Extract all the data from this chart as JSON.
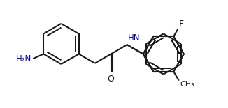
{
  "background_color": "#ffffff",
  "line_color": "#1a1a1a",
  "label_color_blue": "#0000cc",
  "bond_lw": 1.5,
  "figsize": [
    3.26,
    1.55
  ],
  "dpi": 100,
  "ring_r": 0.35,
  "ao": 0.07,
  "xlim": [
    -0.1,
    3.36
  ],
  "ylim": [
    -0.15,
    1.7
  ]
}
